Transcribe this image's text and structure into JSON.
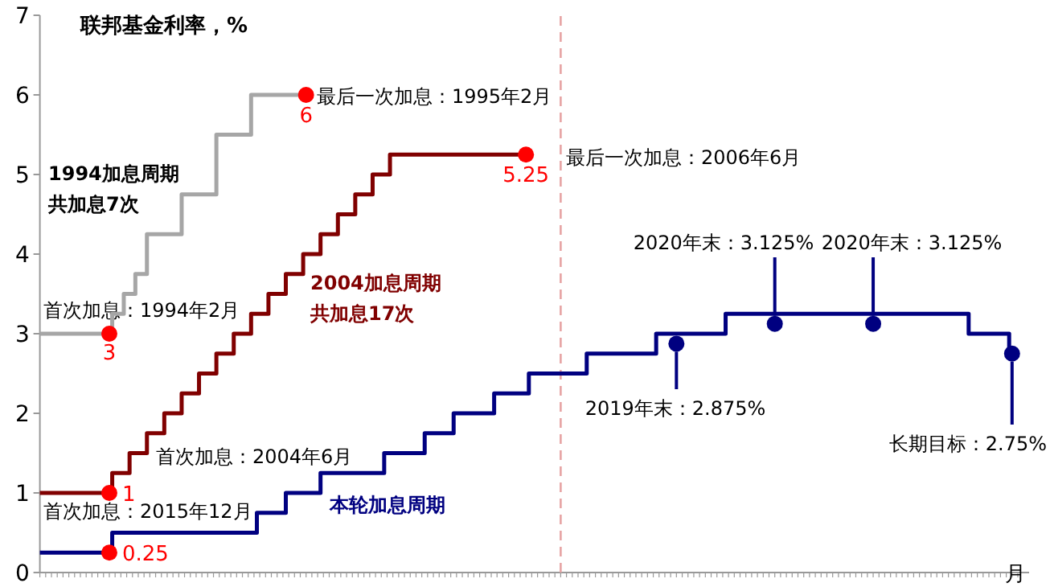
{
  "chart_data": {
    "type": "step",
    "title": "联邦基金利率，%",
    "xlabel": "月",
    "categories": [
      null,
      null,
      null,
      null,
      null,
      null,
      null,
      null,
      null,
      null,
      null,
      null,
      null,
      null,
      null,
      null,
      null,
      null,
      null,
      null,
      null,
      null,
      null,
      null,
      null,
      null,
      null,
      null,
      null,
      null,
      null,
      null,
      null,
      null,
      null,
      null,
      null,
      null,
      null,
      null,
      null,
      null,
      null,
      null,
      null,
      null,
      null,
      null,
      null,
      null,
      null,
      null,
      null,
      null,
      null,
      null,
      null,
      null,
      null,
      null,
      null,
      null,
      null,
      null,
      null,
      null,
      null,
      null,
      null,
      null,
      null,
      null,
      null,
      null,
      null,
      null,
      null,
      null,
      null,
      null,
      null,
      null,
      null,
      null,
      null,
      null,
      null,
      null,
      null,
      null,
      null,
      null,
      null,
      null,
      null,
      null,
      null,
      null,
      null,
      null,
      null,
      null,
      null,
      null,
      null,
      null,
      null,
      null,
      null,
      null,
      null,
      null,
      null,
      null,
      null,
      null,
      null,
      null,
      null,
      null,
      null,
      null,
      null,
      null,
      null,
      null,
      null,
      null,
      null,
      null,
      null,
      null,
      null,
      null,
      null,
      null,
      null,
      null,
      null,
      null,
      null,
      null,
      null,
      null,
      null,
      null,
      null,
      null,
      null,
      null,
      null,
      null,
      null,
      null,
      null,
      null,
      null,
      null,
      null,
      null,
      null,
      null,
      null,
      null,
      null,
      null,
      null,
      null,
      null,
      null
    ],
    "ylim": [
      0,
      7
    ],
    "yticks": [
      0,
      1,
      2,
      3,
      4,
      5,
      6,
      7
    ],
    "marker": "none",
    "series": [
      {
        "color": "#a6a6a6",
        "values": [
          3,
          3,
          3,
          3,
          3,
          3,
          3,
          3,
          3,
          3,
          3,
          3,
          3,
          3.25,
          3.25,
          3.5,
          3.5,
          3.75,
          3.75,
          4.25,
          4.25,
          4.25,
          4.25,
          4.25,
          4.25,
          4.75,
          4.75,
          4.75,
          4.75,
          4.75,
          4.75,
          5.5,
          5.5,
          5.5,
          5.5,
          5.5,
          5.5,
          6,
          6,
          6,
          6,
          6,
          6,
          6,
          6,
          6,
          6,
          null,
          null,
          null,
          null,
          null,
          null,
          null,
          null,
          null,
          null,
          null,
          null,
          null,
          null,
          null,
          null,
          null,
          null,
          null,
          null,
          null,
          null,
          null,
          null,
          null,
          null,
          null,
          null,
          null,
          null,
          null,
          null,
          null,
          null,
          null,
          null,
          null,
          null,
          null,
          null,
          null,
          null,
          null,
          null,
          null,
          null,
          null,
          null,
          null,
          null,
          null,
          null,
          null,
          null,
          null,
          null,
          null,
          null,
          null,
          null,
          null,
          null,
          null,
          null,
          null,
          null,
          null,
          null,
          null,
          null,
          null,
          null,
          null,
          null,
          null,
          null,
          null,
          null,
          null,
          null,
          null,
          null,
          null,
          null,
          null,
          null,
          null,
          null,
          null,
          null,
          null,
          null,
          null,
          null,
          null,
          null,
          null,
          null,
          null,
          null,
          null,
          null,
          null,
          null,
          null,
          null,
          null,
          null,
          null,
          null,
          null,
          null,
          null,
          null,
          null,
          null,
          null,
          null,
          null,
          null,
          null,
          null,
          null
        ]
      },
      {
        "color": "#800000",
        "values": [
          1,
          1,
          1,
          1,
          1,
          1,
          1,
          1,
          1,
          1,
          1,
          1,
          1,
          1.25,
          1.25,
          1.25,
          1.5,
          1.5,
          1.5,
          1.75,
          1.75,
          1.75,
          2,
          2,
          2,
          2.25,
          2.25,
          2.25,
          2.5,
          2.5,
          2.5,
          2.75,
          2.75,
          2.75,
          3,
          3,
          3,
          3.25,
          3.25,
          3.25,
          3.5,
          3.5,
          3.5,
          3.75,
          3.75,
          3.75,
          4,
          4,
          4,
          4.25,
          4.25,
          4.25,
          4.5,
          4.5,
          4.5,
          4.75,
          4.75,
          4.75,
          5,
          5,
          5,
          5.25,
          5.25,
          5.25,
          5.25,
          5.25,
          5.25,
          5.25,
          5.25,
          5.25,
          5.25,
          5.25,
          5.25,
          5.25,
          5.25,
          5.25,
          5.25,
          5.25,
          5.25,
          5.25,
          5.25,
          5.25,
          5.25,
          5.25,
          5.25,
          null,
          null,
          null,
          null,
          null,
          null,
          null,
          null,
          null,
          null,
          null,
          null,
          null,
          null,
          null,
          null,
          null,
          null,
          null,
          null,
          null,
          null,
          null,
          null,
          null,
          null,
          null,
          null,
          null,
          null,
          null,
          null,
          null,
          null,
          null,
          null,
          null,
          null,
          null,
          null,
          null,
          null,
          null,
          null,
          null,
          null,
          null,
          null,
          null,
          null,
          null,
          null,
          null,
          null,
          null,
          null,
          null,
          null,
          null,
          null,
          null,
          null,
          null,
          null,
          null,
          null,
          null,
          null,
          null,
          null,
          null,
          null,
          null,
          null,
          null,
          null,
          null,
          null,
          null,
          null,
          null,
          null,
          null,
          null,
          null
        ]
      },
      {
        "color": "#000080",
        "values": [
          0.25,
          0.25,
          0.25,
          0.25,
          0.25,
          0.25,
          0.25,
          0.25,
          0.25,
          0.25,
          0.25,
          0.25,
          0.25,
          0.5,
          0.5,
          0.5,
          0.5,
          0.5,
          0.5,
          0.5,
          0.5,
          0.5,
          0.5,
          0.5,
          0.5,
          0.5,
          0.5,
          0.5,
          0.5,
          0.5,
          0.5,
          0.5,
          0.5,
          0.5,
          0.5,
          0.5,
          0.5,
          0.5,
          0.75,
          0.75,
          0.75,
          0.75,
          0.75,
          1,
          1,
          1,
          1,
          1,
          1,
          1.25,
          1.25,
          1.25,
          1.25,
          1.25,
          1.25,
          1.25,
          1.25,
          1.25,
          1.25,
          1.25,
          1.5,
          1.5,
          1.5,
          1.5,
          1.5,
          1.5,
          1.5,
          1.75,
          1.75,
          1.75,
          1.75,
          1.75,
          2,
          2,
          2,
          2,
          2,
          2,
          2,
          2.25,
          2.25,
          2.25,
          2.25,
          2.25,
          2.25,
          2.5,
          2.5,
          2.5,
          2.5,
          2.5,
          2.5,
          2.5,
          2.5,
          2.5,
          2.5,
          2.75,
          2.75,
          2.75,
          2.75,
          2.75,
          2.75,
          2.75,
          2.75,
          2.75,
          2.75,
          2.75,
          2.75,
          3,
          3,
          3,
          3,
          3,
          3,
          3,
          3,
          3,
          3,
          3,
          3,
          3.25,
          3.25,
          3.25,
          3.25,
          3.25,
          3.25,
          3.25,
          3.25,
          3.25,
          3.25,
          3.25,
          3.25,
          3.25,
          3.25,
          3.25,
          3.25,
          3.25,
          3.25,
          3.25,
          3.25,
          3.25,
          3.25,
          3.25,
          3.25,
          3.25,
          3.25,
          3.25,
          3.25,
          3.25,
          3.25,
          3.25,
          3.25,
          3.25,
          3.25,
          3.25,
          3.25,
          3.25,
          3.25,
          3.25,
          3.25,
          3.25,
          3.25,
          3,
          3,
          3,
          3,
          3,
          3,
          3,
          2.75,
          2.75
        ]
      },
      {
        "type": "scatter",
        "marker": "circle",
        "color": "#ff0000",
        "values": [
          null,
          null,
          null,
          null,
          null,
          null,
          null,
          null,
          null,
          null,
          null,
          null,
          3,
          null,
          null,
          null,
          null,
          null,
          null,
          null,
          null,
          null,
          null,
          null,
          null,
          null,
          null,
          null,
          null,
          null,
          null,
          null,
          null,
          null,
          null,
          null,
          null,
          null,
          null,
          null,
          null,
          null,
          null,
          null,
          null,
          null,
          6,
          null,
          null,
          null,
          null,
          null,
          null,
          null,
          null,
          null,
          null,
          null,
          null,
          null,
          null,
          null,
          null,
          null,
          null,
          null,
          null,
          null,
          null,
          null,
          null,
          null,
          null,
          null,
          null,
          null,
          null,
          null,
          null,
          null,
          null,
          null,
          null,
          null,
          null,
          null,
          null,
          null,
          null,
          null,
          null,
          null,
          null,
          null,
          null,
          null,
          null,
          null,
          null,
          null,
          null,
          null,
          null,
          null,
          null,
          null,
          null,
          null,
          null,
          null,
          null,
          null,
          null,
          null,
          null,
          null,
          null,
          null,
          null,
          null,
          null,
          null,
          null,
          null,
          null,
          null,
          null,
          null,
          null,
          null,
          null,
          null,
          null,
          null,
          null,
          null,
          null,
          null,
          null,
          null,
          null,
          null,
          null,
          null,
          null,
          null,
          null,
          null,
          null,
          null,
          null,
          null,
          null,
          null,
          null,
          null,
          null,
          null,
          null,
          null,
          null,
          null,
          null,
          null,
          null,
          null,
          null,
          null,
          null,
          null
        ],
        "value_labels": [
          null,
          null,
          null,
          null,
          null,
          null,
          null,
          null,
          null,
          null,
          null,
          null,
          "3",
          null,
          null,
          null,
          null,
          null,
          null,
          null,
          null,
          null,
          null,
          null,
          null,
          null,
          null,
          null,
          null,
          null,
          null,
          null,
          null,
          null,
          null,
          null,
          null,
          null,
          null,
          null,
          null,
          null,
          null,
          null,
          null,
          null,
          "6",
          null,
          null,
          null,
          null,
          null,
          null,
          null,
          null,
          null,
          null,
          null,
          null,
          null,
          null,
          null,
          null,
          null,
          null,
          null,
          null,
          null,
          null,
          null,
          null,
          null,
          null,
          null,
          null,
          null,
          null,
          null,
          null,
          null,
          null,
          null,
          null,
          null,
          null,
          null,
          null,
          null,
          null,
          null,
          null,
          null,
          null,
          null,
          null,
          null,
          null,
          null,
          null,
          null,
          null,
          null,
          null,
          null,
          null,
          null,
          null,
          null,
          null,
          null,
          null,
          null,
          null,
          null,
          null,
          null,
          null,
          null,
          null,
          null,
          null,
          null,
          null,
          null,
          null,
          null,
          null,
          null,
          null,
          null,
          null,
          null,
          null,
          null,
          null,
          null,
          null,
          null,
          null,
          null,
          null,
          null,
          null,
          null,
          null,
          null,
          null,
          null,
          null,
          null,
          null,
          null,
          null,
          null,
          null,
          null,
          null,
          null,
          null,
          null,
          null,
          null,
          null,
          null,
          null,
          null,
          null,
          null,
          null,
          null
        ]
      },
      {
        "type": "scatter",
        "marker": "circle",
        "color": "#ff0000",
        "values": [
          null,
          null,
          null,
          null,
          null,
          null,
          null,
          null,
          null,
          null,
          null,
          null,
          1,
          null,
          null,
          null,
          null,
          null,
          null,
          null,
          null,
          null,
          null,
          null,
          null,
          null,
          null,
          null,
          null,
          null,
          null,
          null,
          null,
          null,
          null,
          null,
          null,
          null,
          null,
          null,
          null,
          null,
          null,
          null,
          null,
          null,
          null,
          null,
          null,
          null,
          null,
          null,
          null,
          null,
          null,
          null,
          null,
          null,
          null,
          null,
          null,
          null,
          null,
          null,
          null,
          null,
          null,
          null,
          null,
          null,
          null,
          null,
          null,
          null,
          null,
          null,
          null,
          null,
          null,
          null,
          null,
          null,
          null,
          null,
          5.25,
          null,
          null,
          null,
          null,
          null,
          null,
          null,
          null,
          null,
          null,
          null,
          null,
          null,
          null,
          null,
          null,
          null,
          null,
          null,
          null,
          null,
          null,
          null,
          null,
          null,
          null,
          null,
          null,
          null,
          null,
          null,
          null,
          null,
          null,
          null,
          null,
          null,
          null,
          null,
          null,
          null,
          null,
          null,
          null,
          null,
          null,
          null,
          null,
          null,
          null,
          null,
          null,
          null,
          null,
          null,
          null,
          null,
          null,
          null,
          null,
          null,
          null,
          null,
          null,
          null,
          null,
          null,
          null,
          null,
          null,
          null,
          null,
          null,
          null,
          null,
          null,
          null,
          null,
          null,
          null,
          null,
          null,
          null,
          null,
          null
        ],
        "value_labels": [
          null,
          null,
          null,
          null,
          null,
          null,
          null,
          null,
          null,
          null,
          null,
          null,
          "1",
          null,
          null,
          null,
          null,
          null,
          null,
          null,
          null,
          null,
          null,
          null,
          null,
          null,
          null,
          null,
          null,
          null,
          null,
          null,
          null,
          null,
          null,
          null,
          null,
          null,
          null,
          null,
          null,
          null,
          null,
          null,
          null,
          null,
          null,
          null,
          null,
          null,
          null,
          null,
          null,
          null,
          null,
          null,
          null,
          null,
          null,
          null,
          null,
          null,
          null,
          null,
          null,
          null,
          null,
          null,
          null,
          null,
          null,
          null,
          null,
          null,
          null,
          null,
          null,
          null,
          null,
          null,
          null,
          null,
          null,
          null,
          "5.25",
          null,
          null,
          null,
          null,
          null,
          null,
          null,
          null,
          null,
          null,
          null,
          null,
          null,
          null,
          null,
          null,
          null,
          null,
          null,
          null,
          null,
          null,
          null,
          null,
          null,
          null,
          null,
          null,
          null,
          null,
          null,
          null,
          null,
          null,
          null,
          null,
          null,
          null,
          null,
          null,
          null,
          null,
          null,
          null,
          null,
          null,
          null,
          null,
          null,
          null,
          null,
          null,
          null,
          null,
          null,
          null,
          null,
          null,
          null,
          null,
          null,
          null,
          null,
          null,
          null,
          null,
          null,
          null,
          null,
          null,
          null,
          null,
          null,
          null,
          null,
          null,
          null,
          null,
          null,
          null,
          null,
          null,
          null,
          null,
          null
        ]
      },
      {
        "type": "scatter",
        "marker": "circle",
        "color": "#ff0000",
        "values": [
          null,
          null,
          null,
          null,
          null,
          null,
          null,
          null,
          null,
          null,
          null,
          null,
          0.25,
          null,
          null,
          null,
          null,
          null,
          null,
          null,
          null,
          null,
          null,
          null,
          null,
          null,
          null,
          null,
          null,
          null,
          null,
          null,
          null,
          null,
          null,
          null,
          null,
          null,
          null,
          null,
          null,
          null,
          null,
          null,
          null,
          null,
          null,
          null,
          null,
          null,
          null,
          null,
          null,
          null,
          null,
          null,
          null,
          null,
          null,
          null,
          null,
          null,
          null,
          null,
          null,
          null,
          null,
          null,
          null,
          null,
          null,
          null,
          null,
          null,
          null,
          null,
          null,
          null,
          null,
          null,
          null,
          null,
          null,
          null,
          null,
          null,
          null,
          null,
          null,
          null,
          null,
          null,
          null,
          null,
          null,
          null,
          null,
          null,
          null,
          null,
          null,
          null,
          null,
          null,
          null,
          null,
          null,
          null,
          null,
          null,
          null,
          null,
          null,
          null,
          null,
          null,
          null,
          null,
          null,
          null,
          null,
          null,
          null,
          null,
          null,
          null,
          null,
          null,
          null,
          null,
          null,
          null,
          null,
          null,
          null,
          null,
          null,
          null,
          null,
          null,
          null,
          null,
          null,
          null,
          null,
          null,
          null,
          null,
          null,
          null,
          null,
          null,
          null,
          null,
          null,
          null,
          null,
          null,
          null,
          null,
          null,
          null,
          null,
          null,
          null,
          null,
          null,
          null,
          null,
          null
        ],
        "value_labels": [
          null,
          null,
          null,
          null,
          null,
          null,
          null,
          null,
          null,
          null,
          null,
          null,
          "0.25",
          null,
          null,
          null,
          null,
          null,
          null,
          null,
          null,
          null,
          null,
          null,
          null,
          null,
          null,
          null,
          null,
          null,
          null,
          null,
          null,
          null,
          null,
          null,
          null,
          null,
          null,
          null,
          null,
          null,
          null,
          null,
          null,
          null,
          null,
          null,
          null,
          null,
          null,
          null,
          null,
          null,
          null,
          null,
          null,
          null,
          null,
          null,
          null,
          null,
          null,
          null,
          null,
          null,
          null,
          null,
          null,
          null,
          null,
          null,
          null,
          null,
          null,
          null,
          null,
          null,
          null,
          null,
          null,
          null,
          null,
          null,
          null,
          null,
          null,
          null,
          null,
          null,
          null,
          null,
          null,
          null,
          null,
          null,
          null,
          null,
          null,
          null,
          null,
          null,
          null,
          null,
          null,
          null,
          null,
          null,
          null,
          null,
          null,
          null,
          null,
          null,
          null,
          null,
          null,
          null,
          null,
          null,
          null,
          null,
          null,
          null,
          null,
          null,
          null,
          null,
          null,
          null,
          null,
          null,
          null,
          null,
          null,
          null,
          null,
          null,
          null,
          null,
          null,
          null,
          null,
          null,
          null,
          null,
          null,
          null,
          null,
          null,
          null,
          null,
          null,
          null,
          null,
          null,
          null,
          null,
          null,
          null,
          null,
          null,
          null,
          null,
          null,
          null,
          null,
          null,
          null,
          null
        ]
      },
      {
        "type": "scatter",
        "marker": "circle",
        "color": "#000080",
        "values": [
          null,
          null,
          null,
          null,
          null,
          null,
          null,
          null,
          null,
          null,
          null,
          null,
          null,
          null,
          null,
          null,
          null,
          null,
          null,
          null,
          null,
          null,
          null,
          null,
          null,
          null,
          null,
          null,
          null,
          null,
          null,
          null,
          null,
          null,
          null,
          null,
          null,
          null,
          null,
          null,
          null,
          null,
          null,
          null,
          null,
          null,
          null,
          null,
          null,
          null,
          null,
          null,
          null,
          null,
          null,
          null,
          null,
          null,
          null,
          null,
          null,
          null,
          null,
          null,
          null,
          null,
          null,
          null,
          null,
          null,
          null,
          null,
          null,
          null,
          null,
          null,
          null,
          null,
          null,
          null,
          null,
          null,
          null,
          null,
          null,
          null,
          null,
          null,
          null,
          null,
          null,
          null,
          null,
          null,
          null,
          null,
          null,
          null,
          null,
          null,
          null,
          null,
          null,
          null,
          null,
          null,
          null,
          null,
          null,
          null,
          2.875,
          null,
          null,
          null,
          null,
          null,
          null,
          null,
          null,
          null,
          null,
          null,
          null,
          null,
          null,
          null,
          null,
          3.125,
          null,
          null,
          null,
          null,
          null,
          null,
          null,
          null,
          null,
          null,
          null,
          null,
          null,
          null,
          null,
          null,
          3.125,
          null,
          null,
          null,
          null,
          null,
          null,
          null,
          null,
          null,
          null,
          null,
          null,
          null,
          null,
          null,
          null,
          null,
          null,
          null,
          null,
          null,
          null,
          null,
          2.75,
          null
        ]
      }
    ],
    "annotations": [
      "最后一次加息：1995年2月",
      "1994加息周期",
      "共加息7次",
      "首次加息：1994年2月",
      "2004加息周期",
      "共加息17次",
      "最后一次加息：2006年6月",
      "首次加息：2004年6月",
      "首次加息：2015年12月",
      "本轮加息周期",
      "2020年末：3.125%",
      "2020年末：3.125%",
      "2019年末：2.875%",
      "长期目标：2.75%"
    ]
  }
}
